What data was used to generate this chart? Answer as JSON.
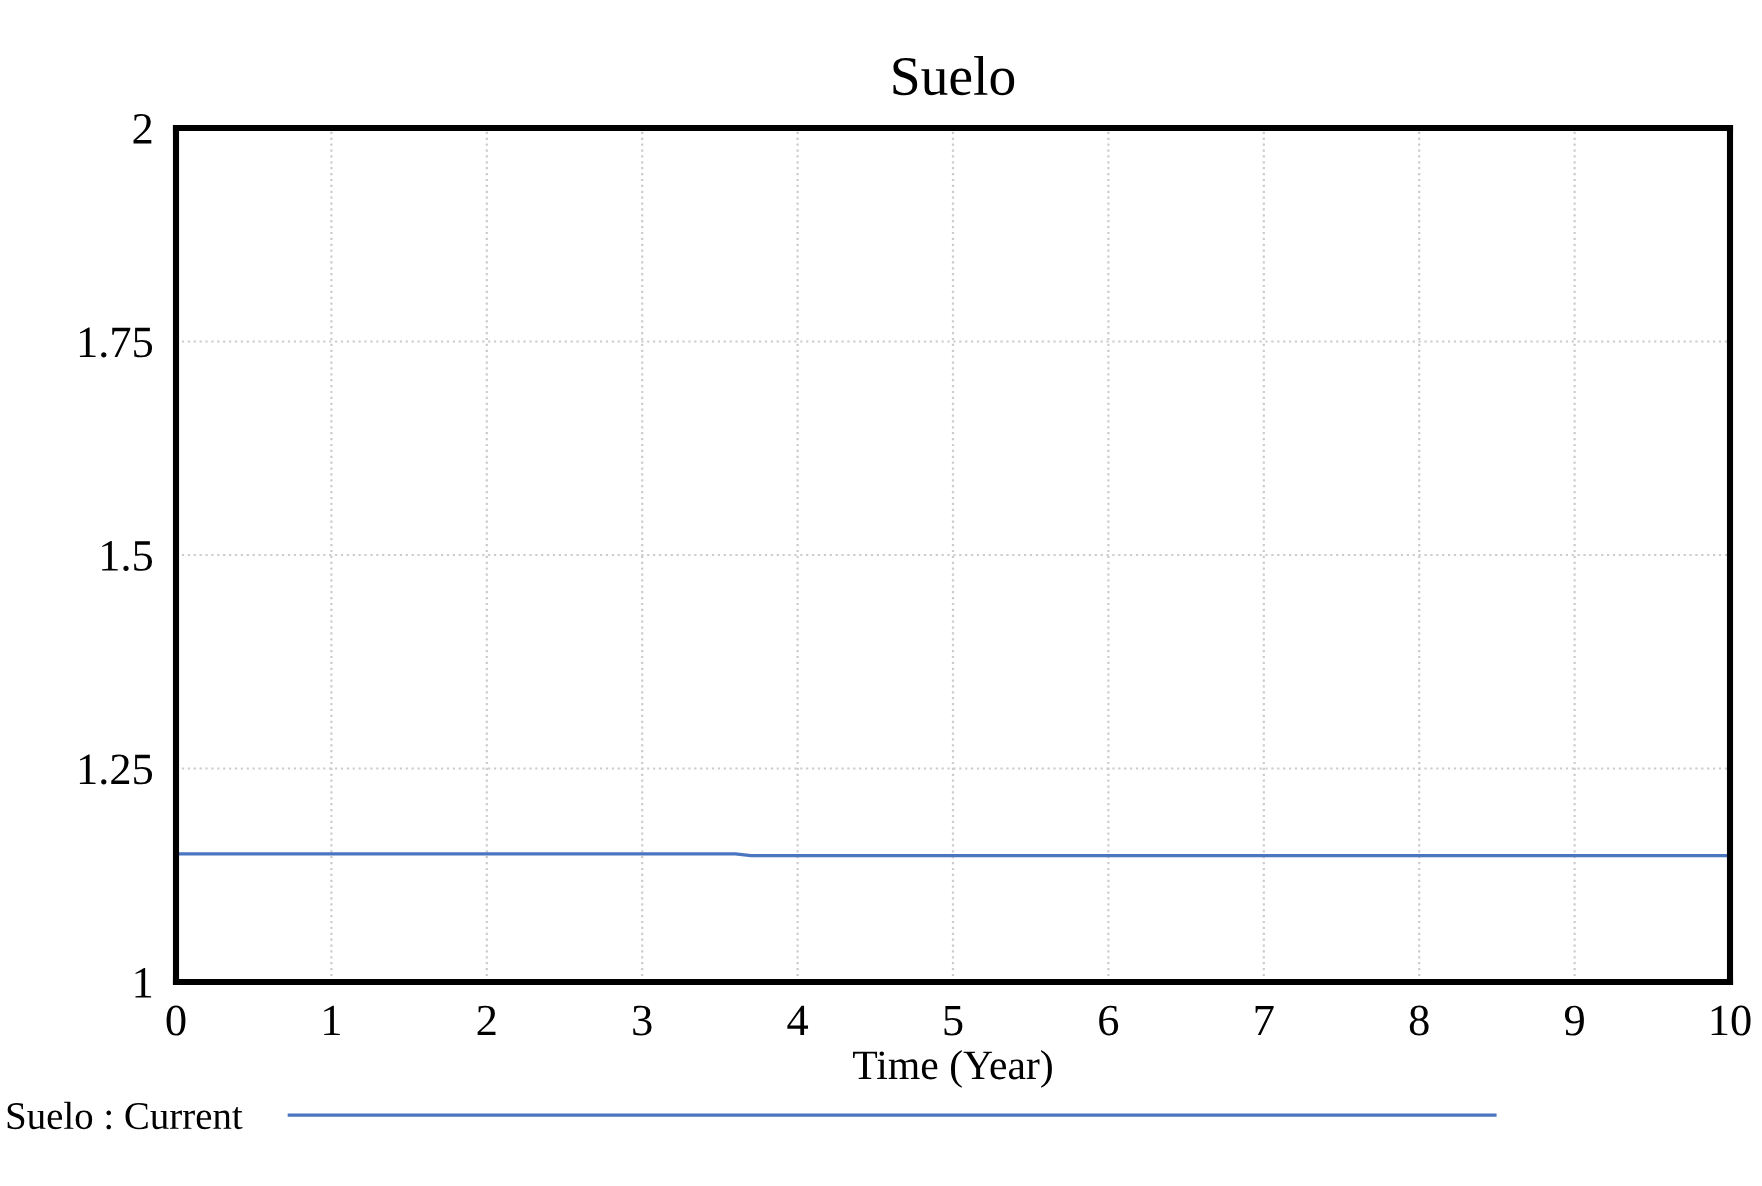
{
  "chart_data": {
    "type": "line",
    "title": "Suelo",
    "xlabel": "Time (Year)",
    "x": [
      0,
      3.6,
      3.7,
      10
    ],
    "series": [
      {
        "name": "Suelo : Current",
        "color": "#4a76c0",
        "values": [
          1.15,
          1.15,
          1.148,
          1.148
        ]
      }
    ],
    "xlim": [
      0,
      10
    ],
    "xticks": [
      0,
      1,
      2,
      3,
      4,
      5,
      6,
      7,
      8,
      9,
      10
    ],
    "ylim": [
      1,
      2
    ],
    "yticks": [
      1,
      1.25,
      1.5,
      1.75,
      2
    ],
    "grid": true,
    "legend": "bottom left",
    "marker": "none",
    "line_style": "solid"
  }
}
